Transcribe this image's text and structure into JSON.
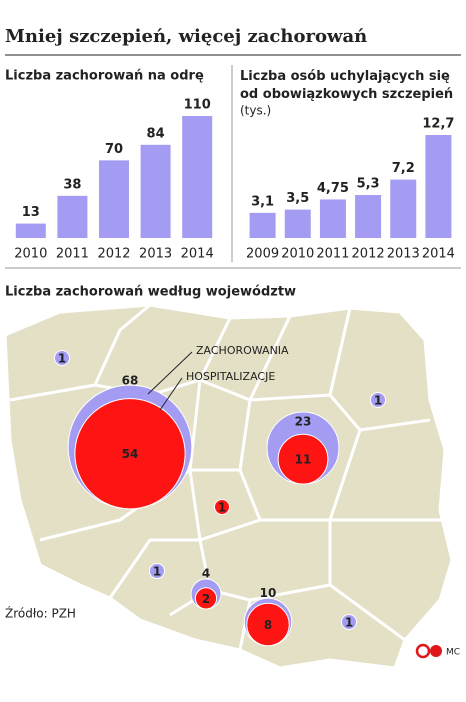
{
  "title": "Mniej szczepień, więcej zachorowań",
  "source": "Źródło: PZH",
  "credit": "MC",
  "chart_data": [
    {
      "type": "bar",
      "title": "Liczba zachorowań na odrę",
      "categories": [
        "2010",
        "2011",
        "2012",
        "2013",
        "2014"
      ],
      "values": [
        13,
        38,
        70,
        84,
        110
      ],
      "color": "#a39cf2"
    },
    {
      "type": "bar",
      "title": "Liczba osób uchylających się od obowiązkowych szczepień",
      "subtitle": "(tys.)",
      "categories": [
        "2009",
        "2010",
        "2011",
        "2012",
        "2013",
        "2014"
      ],
      "values": [
        3.1,
        3.5,
        4.75,
        5.3,
        7.2,
        12.7
      ],
      "value_labels": [
        "3,1",
        "3,5",
        "4,75",
        "5,3",
        "7,2",
        "12,7"
      ],
      "color": "#a39cf2"
    },
    {
      "type": "bubble-map",
      "title": "Liczba zachorowań według województw",
      "series": [
        {
          "name": "ZACHOROWANIA",
          "color": "#a39cf2",
          "values": [
            1,
            68,
            23,
            1,
            null,
            1,
            4,
            10,
            1
          ]
        },
        {
          "name": "HOSPITALIZACJE",
          "color": "#ff1414",
          "values": [
            null,
            54,
            11,
            null,
            1,
            null,
            2,
            8,
            null
          ]
        }
      ]
    }
  ]
}
